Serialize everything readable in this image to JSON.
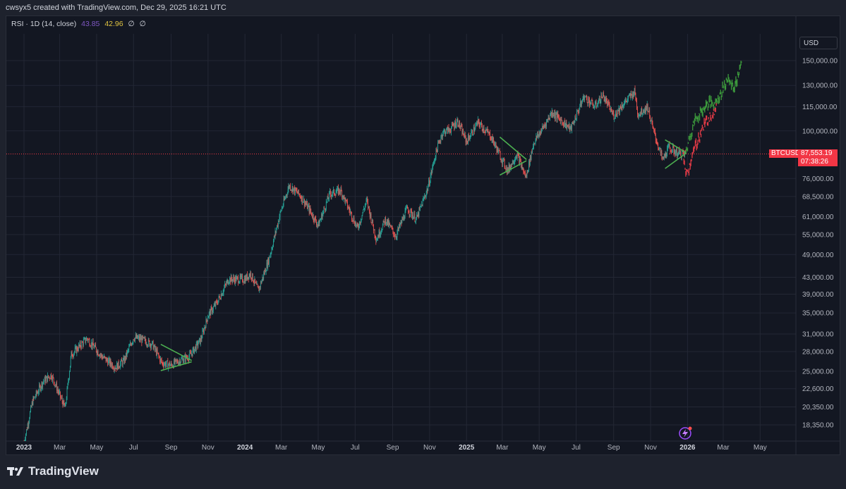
{
  "header": {
    "text": "cwsyx5 created with TradingView.com, Dec 29, 2025 16:21 UTC"
  },
  "legend": {
    "label": "RSI · 1D (14, close)",
    "value1": "43.85",
    "value2": "42.96",
    "na1": "∅",
    "na2": "∅"
  },
  "currency": "USD",
  "price_tag": {
    "symbol": "BTCUSD",
    "price": "87,553.19",
    "countdown": "07:38:26"
  },
  "brand": "TradingView",
  "colors": {
    "up": "#26a69a",
    "down": "#ef5350",
    "pattern": "#4caf50",
    "proj_up": "#3c9a3c",
    "proj_down": "#e03a46",
    "price_line": "#f23645"
  },
  "chart_data": {
    "type": "line",
    "title": "",
    "xlabel": "",
    "ylabel": "",
    "y_scale": "log",
    "ylim": [
      16800,
      170000
    ],
    "x_ticks": [
      "2023",
      "Mar",
      "May",
      "Jul",
      "Sep",
      "Nov",
      "2024",
      "Mar",
      "May",
      "Jul",
      "Sep",
      "Nov",
      "2025",
      "Mar",
      "May",
      "Jul",
      "Sep",
      "Nov",
      "2026",
      "Mar",
      "May"
    ],
    "y_ticks": [
      "150,000.00",
      "130,000.00",
      "115,000.00",
      "100,000.00",
      "76,000.00",
      "68,500.00",
      "61,000.00",
      "55,000.00",
      "49,000.00",
      "43,000.00",
      "39,000.00",
      "35,000.00",
      "31,000.00",
      "28,000.00",
      "25,000.00",
      "22,600.00",
      "20,350.00",
      "18,350.00"
    ],
    "y_tick_values": [
      150000,
      130000,
      115000,
      100000,
      76000,
      68500,
      61000,
      55000,
      49000,
      43000,
      39000,
      35000,
      31000,
      28000,
      25000,
      22600,
      20350,
      18350
    ],
    "current_price": 87553.19,
    "series": [
      {
        "name": "BTCUSD",
        "x": [
          "2023-01-01",
          "2023-01-15",
          "2023-02-01",
          "2023-02-15",
          "2023-03-10",
          "2023-03-20",
          "2023-04-15",
          "2023-05-10",
          "2023-06-01",
          "2023-06-15",
          "2023-07-01",
          "2023-07-15",
          "2023-08-01",
          "2023-08-17",
          "2023-09-01",
          "2023-09-15",
          "2023-10-01",
          "2023-10-20",
          "2023-11-01",
          "2023-11-15",
          "2023-12-05",
          "2024-01-01",
          "2024-01-10",
          "2024-01-23",
          "2024-02-10",
          "2024-02-28",
          "2024-03-14",
          "2024-04-01",
          "2024-04-15",
          "2024-05-01",
          "2024-05-20",
          "2024-06-07",
          "2024-06-20",
          "2024-07-05",
          "2024-07-20",
          "2024-08-05",
          "2024-08-20",
          "2024-09-06",
          "2024-09-25",
          "2024-10-10",
          "2024-10-29",
          "2024-11-12",
          "2024-11-22",
          "2024-12-05",
          "2024-12-17",
          "2025-01-01",
          "2025-01-20",
          "2025-02-10",
          "2025-03-01",
          "2025-03-10",
          "2025-03-25",
          "2025-04-09",
          "2025-04-22",
          "2025-05-10",
          "2025-05-22",
          "2025-06-10",
          "2025-06-22",
          "2025-07-14",
          "2025-08-01",
          "2025-08-14",
          "2025-09-01",
          "2025-09-15",
          "2025-10-06",
          "2025-10-11",
          "2025-10-27",
          "2025-11-05",
          "2025-11-21",
          "2025-12-01",
          "2025-12-15",
          "2025-12-29"
        ],
        "y": [
          16600,
          21000,
          23500,
          24500,
          20200,
          27500,
          30200,
          27200,
          25600,
          26500,
          30400,
          30000,
          29200,
          26200,
          25900,
          26600,
          27200,
          30000,
          34500,
          37000,
          42500,
          42500,
          44000,
          39800,
          48000,
          62000,
          73000,
          69000,
          64000,
          58000,
          69500,
          71000,
          64000,
          57000,
          67000,
          53500,
          60000,
          54500,
          64000,
          60000,
          72000,
          89000,
          99000,
          101000,
          106000,
          94000,
          105000,
          97000,
          84500,
          79500,
          87500,
          76500,
          93500,
          103500,
          111500,
          105000,
          101000,
          122000,
          115000,
          123000,
          109000,
          116000,
          125500,
          110000,
          115000,
          101000,
          84500,
          91000,
          88000,
          87553
        ]
      },
      {
        "name": "Projection (green)",
        "x": [
          "2025-12-29",
          "2026-01-05",
          "2026-01-15",
          "2026-01-25",
          "2026-02-05",
          "2026-02-15",
          "2026-02-25",
          "2026-03-08",
          "2026-03-20",
          "2026-04-01"
        ],
        "y": [
          88000,
          97000,
          108000,
          112000,
          118000,
          117000,
          124000,
          135000,
          128000,
          150000
        ]
      },
      {
        "name": "Projection (red)",
        "x": [
          "2025-12-26",
          "2026-01-01",
          "2026-01-08",
          "2026-01-18",
          "2026-01-28",
          "2026-02-08",
          "2026-02-18"
        ],
        "y": [
          82000,
          78000,
          86000,
          95000,
          103000,
          110000,
          113000
        ]
      }
    ],
    "patterns": [
      {
        "type": "triangle",
        "upper": [
          [
            "2023-08-15",
            29200
          ],
          [
            "2023-10-05",
            26600
          ]
        ],
        "lower": [
          [
            "2023-08-15",
            25100
          ],
          [
            "2023-10-05",
            26400
          ]
        ]
      },
      {
        "type": "triangle",
        "upper": [
          [
            "2025-02-25",
            96500
          ],
          [
            "2025-04-10",
            84800
          ]
        ],
        "lower": [
          [
            "2025-02-25",
            77500
          ],
          [
            "2025-04-10",
            84200
          ]
        ]
      },
      {
        "type": "triangle",
        "upper": [
          [
            "2025-11-25",
            95000
          ],
          [
            "2025-12-30",
            88100
          ]
        ],
        "lower": [
          [
            "2025-11-25",
            80500
          ],
          [
            "2025-12-30",
            88000
          ]
        ]
      }
    ],
    "grid": true,
    "legend_position": "top-left"
  }
}
